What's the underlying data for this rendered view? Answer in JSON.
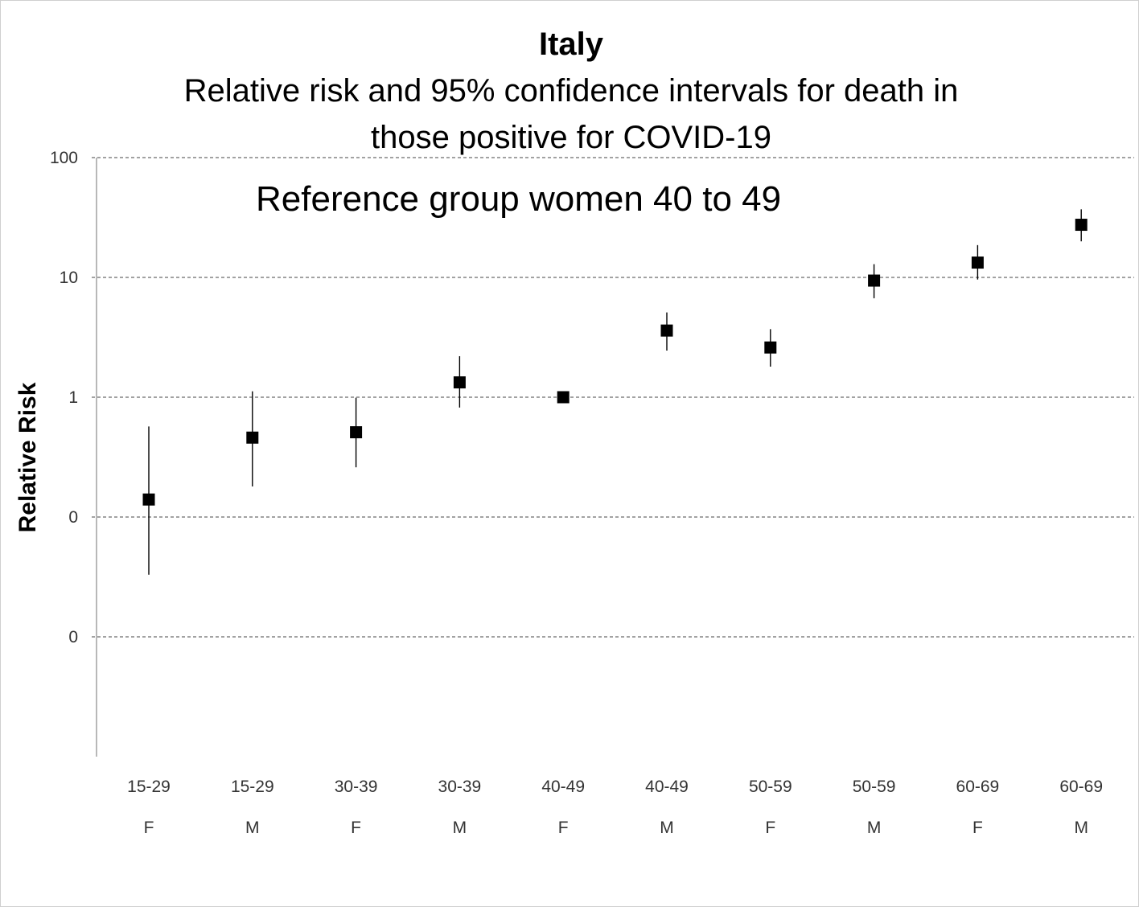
{
  "chart_data": {
    "type": "scatter",
    "title": "Italy",
    "subtitle_lines": [
      "Relative risk and 95% confidence intervals for death in",
      "those positive for COVID-19"
    ],
    "annotation": "Reference group women 40 to 49",
    "ylabel": "Relative Risk",
    "xlabel": "",
    "y_scale": "log",
    "ylim": [
      0.001,
      100
    ],
    "y_ticks": [
      {
        "value": 100,
        "label": "100"
      },
      {
        "value": 10,
        "label": "10"
      },
      {
        "value": 1,
        "label": "1"
      },
      {
        "value": 0.1,
        "label": "0"
      },
      {
        "value": 0.01,
        "label": "0"
      }
    ],
    "grid": true,
    "categories": [
      "15-29",
      "15-29",
      "30-39",
      "30-39",
      "40-49",
      "40-49",
      "50-59",
      "50-59",
      "60-69",
      "60-69"
    ],
    "sex": [
      "F",
      "M",
      "F",
      "M",
      "F",
      "M",
      "F",
      "M",
      "F",
      "M"
    ],
    "values": [
      0.14,
      0.46,
      0.51,
      1.33,
      1.0,
      3.6,
      2.6,
      9.4,
      13.3,
      27.5
    ],
    "ci_lower": [
      0.033,
      0.18,
      0.26,
      0.82,
      1.0,
      2.45,
      1.8,
      6.7,
      9.6,
      20.0
    ],
    "ci_upper": [
      0.57,
      1.12,
      0.99,
      2.2,
      1.0,
      5.1,
      3.7,
      12.9,
      18.6,
      37.0
    ]
  }
}
